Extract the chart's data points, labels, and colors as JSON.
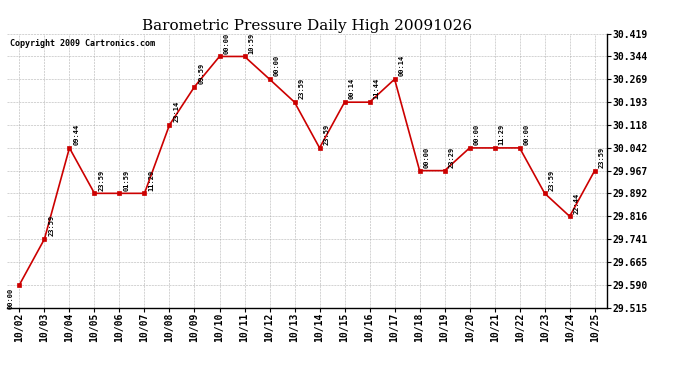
{
  "title": "Barometric Pressure Daily High 20091026",
  "copyright": "Copyright 2009 Cartronics.com",
  "x_labels": [
    "10/02",
    "10/03",
    "10/04",
    "10/05",
    "10/06",
    "10/07",
    "10/08",
    "10/09",
    "10/10",
    "10/11",
    "10/12",
    "10/13",
    "10/14",
    "10/15",
    "10/16",
    "10/17",
    "10/18",
    "10/19",
    "10/20",
    "10/21",
    "10/22",
    "10/23",
    "10/24",
    "10/25"
  ],
  "y_values": [
    29.59,
    29.741,
    30.042,
    29.892,
    29.892,
    29.892,
    30.118,
    30.244,
    30.344,
    30.344,
    30.269,
    30.193,
    30.042,
    30.193,
    30.193,
    30.269,
    29.967,
    29.967,
    30.042,
    30.042,
    30.042,
    29.892,
    29.816,
    29.967
  ],
  "point_labels": [
    "00:00",
    "23:59",
    "09:44",
    "23:59",
    "01:59",
    "11:29",
    "23:14",
    "09:59",
    "00:00",
    "10:59",
    "00:00",
    "23:59",
    "23:59",
    "00:14",
    "11:44",
    "00:14",
    "00:00",
    "23:29",
    "00:00",
    "11:29",
    "00:00",
    "23:59",
    "22:44",
    "23:59"
  ],
  "y_min": 29.515,
  "y_max": 30.419,
  "y_ticks": [
    29.515,
    29.59,
    29.665,
    29.741,
    29.816,
    29.892,
    29.967,
    30.042,
    30.118,
    30.193,
    30.269,
    30.344,
    30.419
  ],
  "line_color": "#cc0000",
  "marker_color": "#cc0000",
  "bg_color": "#ffffff",
  "grid_color": "#aaaaaa",
  "title_fontsize": 11,
  "label_fontsize": 7,
  "annot_fontsize": 5,
  "copyright_fontsize": 6
}
